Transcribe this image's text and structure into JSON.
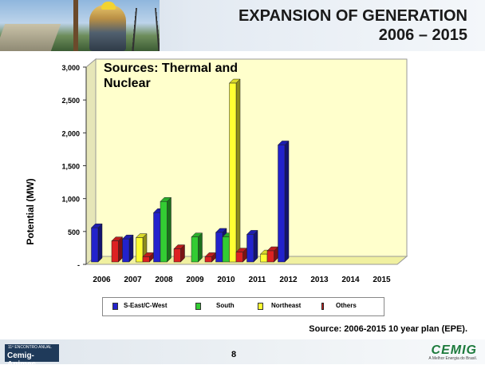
{
  "header": {
    "title_line1": "EXPANSION OF GENERATION",
    "title_line2": "2006 – 2015"
  },
  "source_note": "Source: 2006-2015 10 year plan (EPE).",
  "page_number": "8",
  "footer": {
    "event_small": "11º ENCONTRO ANUAL",
    "event_name": "Cemig-Apimec",
    "company_logo": "CEMIG",
    "company_tagline": "A Melhor Energia do Brasil."
  },
  "colors": {
    "S-East/C-West": "#2222cc",
    "South": "#33cc33",
    "Northeast": "#ffff33",
    "Others": "#dd2222"
  },
  "chart_data": {
    "type": "bar",
    "title": "Sources: Thermal and Nuclear",
    "ylabel": "Potential (MW)",
    "xlabel": "",
    "ylim": [
      0,
      3000
    ],
    "yticks": [
      "-",
      "500",
      "1,000",
      "1,500",
      "2,000",
      "2,500",
      "3,000"
    ],
    "categories": [
      "2006",
      "2007",
      "2008",
      "2009",
      "2010",
      "2011",
      "2012",
      "2013",
      "2014",
      "2015"
    ],
    "legend_position": "bottom",
    "series": [
      {
        "name": "S-East/C-West",
        "values": [
          520,
          350,
          750,
          0,
          450,
          420,
          1780,
          0,
          0,
          0
        ]
      },
      {
        "name": "South",
        "values": [
          0,
          0,
          920,
          380,
          380,
          0,
          0,
          0,
          0,
          0
        ]
      },
      {
        "name": "Northeast",
        "values": [
          0,
          370,
          0,
          0,
          2720,
          120,
          0,
          0,
          0,
          0
        ]
      },
      {
        "name": "Others",
        "values": [
          320,
          80,
          200,
          80,
          150,
          170,
          0,
          0,
          0,
          0
        ]
      }
    ]
  }
}
